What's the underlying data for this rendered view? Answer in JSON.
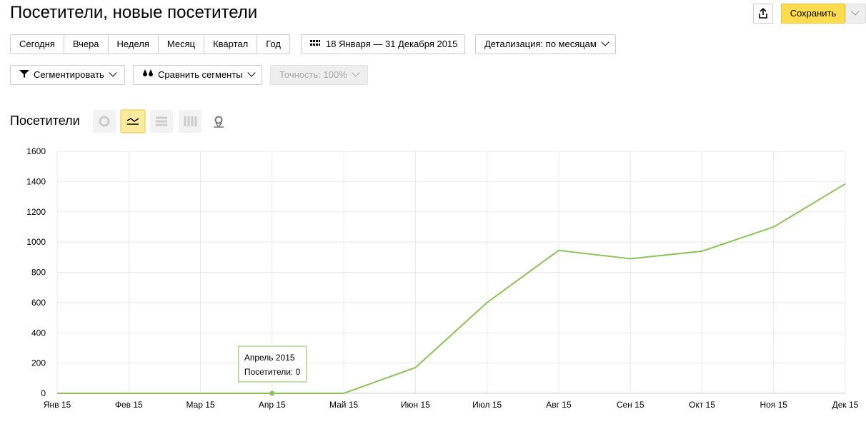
{
  "header": {
    "title": "Посетители, новые посетители",
    "save": "Сохранить"
  },
  "periods": [
    "Сегодня",
    "Вчера",
    "Неделя",
    "Месяц",
    "Квартал",
    "Год"
  ],
  "date_range": "18 Января — 31 Декабря 2015",
  "detail": "Детализация: по месяцам",
  "segment": "Сегментировать",
  "compare": "Сравнить сегменты",
  "accuracy": "Точность: 100%",
  "chart_data": {
    "type": "line",
    "title": "Посетители",
    "categories": [
      "Янв 15",
      "Фев 15",
      "Мар 15",
      "Апр 15",
      "Май 15",
      "Июн 15",
      "Июл 15",
      "Авг 15",
      "Сен 15",
      "Окт 15",
      "Ноя 15",
      "Дек 15"
    ],
    "values": [
      0,
      0,
      0,
      0,
      0,
      170,
      600,
      945,
      890,
      940,
      1100,
      1385
    ],
    "color": "#8cc15a",
    "ylim": [
      0,
      1600
    ],
    "yticks": [
      0,
      200,
      400,
      600,
      800,
      1000,
      1200,
      1400,
      1600
    ],
    "grid": true,
    "tooltip": {
      "index": 3,
      "title": "Апрель 2015",
      "text": "Посетители: 0"
    }
  }
}
